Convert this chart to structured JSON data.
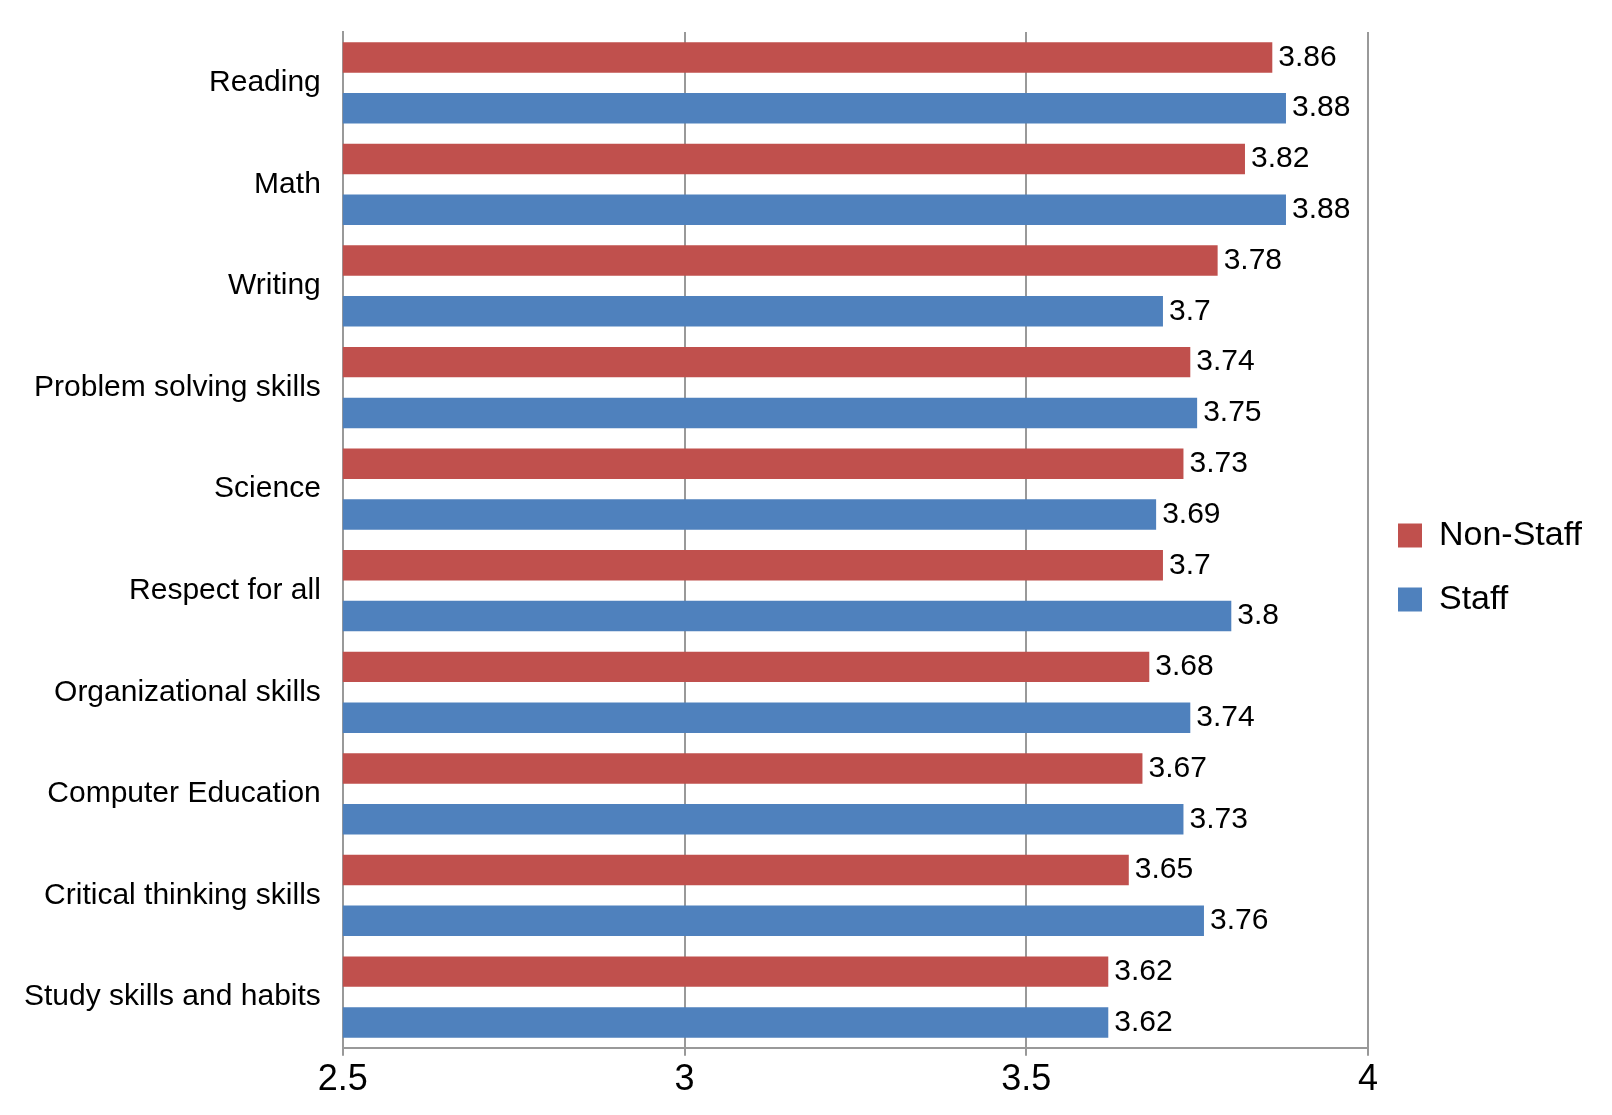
{
  "chart_data": {
    "type": "bar",
    "orientation": "horizontal",
    "categories": [
      "Reading",
      "Math",
      "Writing",
      "Problem solving skills",
      "Science",
      "Respect for all",
      "Organizational skills",
      "Computer Education",
      "Critical thinking skills",
      "Study skills and habits"
    ],
    "series": [
      {
        "name": "Non-Staff",
        "color": "#c0504d",
        "values": [
          3.86,
          3.82,
          3.78,
          3.74,
          3.73,
          3.7,
          3.68,
          3.67,
          3.65,
          3.62
        ]
      },
      {
        "name": "Staff",
        "color": "#4f81bd",
        "values": [
          3.88,
          3.88,
          3.7,
          3.75,
          3.69,
          3.8,
          3.74,
          3.73,
          3.76,
          3.62
        ]
      }
    ],
    "xlim": [
      2.5,
      4
    ],
    "xticks": [
      2.5,
      3,
      3.5,
      4
    ],
    "grid": "x",
    "legend": "right",
    "data_labels": true
  }
}
